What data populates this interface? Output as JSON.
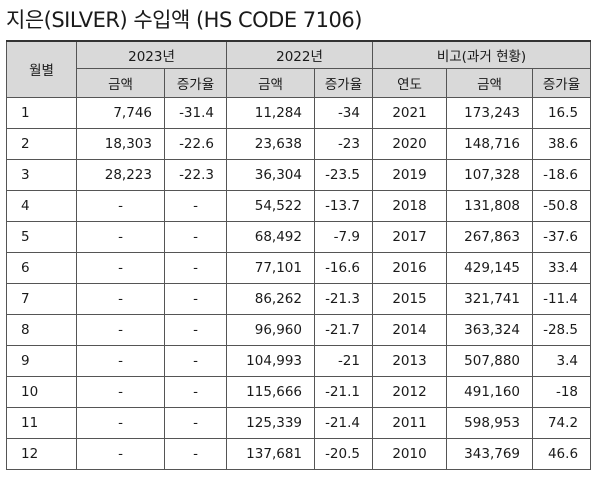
{
  "title": "지은(SILVER) 수입액 (HS CODE 7106)",
  "headers": {
    "month": "월별",
    "y2023": "2023년",
    "y2022": "2022년",
    "compare": "비고(과거 현황)",
    "amount": "금액",
    "growth": "증가율",
    "year": "연도"
  },
  "rows": [
    {
      "m": "1",
      "a23": "7,746",
      "g23": "-31.4",
      "a22": "11,284",
      "g22": "-34",
      "yr": "2021",
      "pa": "173,243",
      "pg": "16.5"
    },
    {
      "m": "2",
      "a23": "18,303",
      "g23": "-22.6",
      "a22": "23,638",
      "g22": "-23",
      "yr": "2020",
      "pa": "148,716",
      "pg": "38.6"
    },
    {
      "m": "3",
      "a23": "28,223",
      "g23": "-22.3",
      "a22": "36,304",
      "g22": "-23.5",
      "yr": "2019",
      "pa": "107,328",
      "pg": "-18.6"
    },
    {
      "m": "4",
      "a23": "-",
      "g23": "-",
      "a22": "54,522",
      "g22": "-13.7",
      "yr": "2018",
      "pa": "131,808",
      "pg": "-50.8"
    },
    {
      "m": "5",
      "a23": "-",
      "g23": "-",
      "a22": "68,492",
      "g22": "-7.9",
      "yr": "2017",
      "pa": "267,863",
      "pg": "-37.6"
    },
    {
      "m": "6",
      "a23": "-",
      "g23": "-",
      "a22": "77,101",
      "g22": "-16.6",
      "yr": "2016",
      "pa": "429,145",
      "pg": "33.4"
    },
    {
      "m": "7",
      "a23": "-",
      "g23": "-",
      "a22": "86,262",
      "g22": "-21.3",
      "yr": "2015",
      "pa": "321,741",
      "pg": "-11.4"
    },
    {
      "m": "8",
      "a23": "-",
      "g23": "-",
      "a22": "96,960",
      "g22": "-21.7",
      "yr": "2014",
      "pa": "363,324",
      "pg": "-28.5"
    },
    {
      "m": "9",
      "a23": "-",
      "g23": "-",
      "a22": "104,993",
      "g22": "-21",
      "yr": "2013",
      "pa": "507,880",
      "pg": "3.4"
    },
    {
      "m": "10",
      "a23": "-",
      "g23": "-",
      "a22": "115,666",
      "g22": "-21.1",
      "yr": "2012",
      "pa": "491,160",
      "pg": "-18"
    },
    {
      "m": "11",
      "a23": "-",
      "g23": "-",
      "a22": "125,339",
      "g22": "-21.4",
      "yr": "2011",
      "pa": "598,953",
      "pg": "74.2"
    },
    {
      "m": "12",
      "a23": "-",
      "g23": "-",
      "a22": "137,681",
      "g22": "-20.5",
      "yr": "2010",
      "pa": "343,769",
      "pg": "46.6"
    }
  ]
}
